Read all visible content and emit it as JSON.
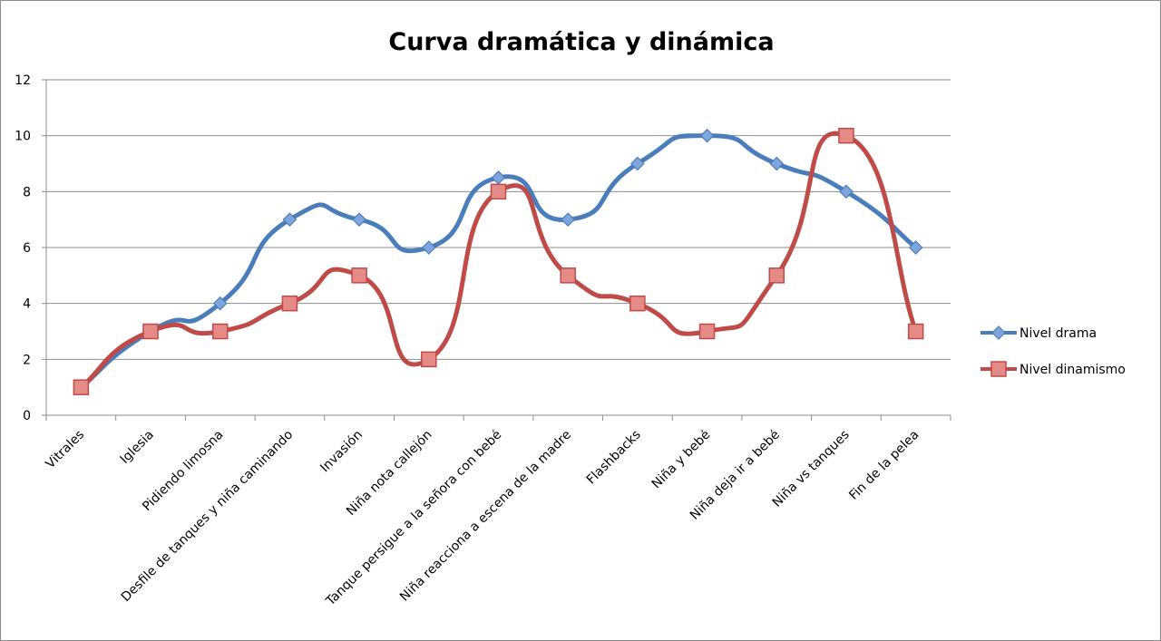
{
  "chart_data": {
    "type": "line",
    "title": "Curva dramática y dinámica",
    "xlabel": "",
    "ylabel": "",
    "ylim": [
      0,
      12
    ],
    "yticks": [
      0,
      2,
      4,
      6,
      8,
      10,
      12
    ],
    "grid": true,
    "legend_position": "right",
    "categories": [
      "Vitrales",
      "Iglesia",
      "Pidiendo limosna",
      "Desfile de tanques y niña caminando",
      "Invasión",
      "Niña nota callejón",
      "Tanque persigue a la señora con bebé",
      "Niña reacciona a escena de la madre",
      "Flashbacks",
      "Niña y bebé",
      "Niña deja ir a bebé",
      "Niña vs tanques",
      "Fin de la pelea"
    ],
    "series": [
      {
        "name": "Nivel drama",
        "color": "#4a7ebb",
        "marker": "diamond",
        "values": [
          1,
          3,
          4,
          7,
          7,
          6,
          8.5,
          7,
          9,
          10,
          9,
          8,
          6
        ]
      },
      {
        "name": "Nivel dinamismo",
        "color": "#be4b48",
        "marker": "square",
        "values": [
          1,
          3,
          3,
          4,
          5,
          2,
          8,
          5,
          4,
          3,
          5,
          10,
          3
        ]
      }
    ]
  }
}
